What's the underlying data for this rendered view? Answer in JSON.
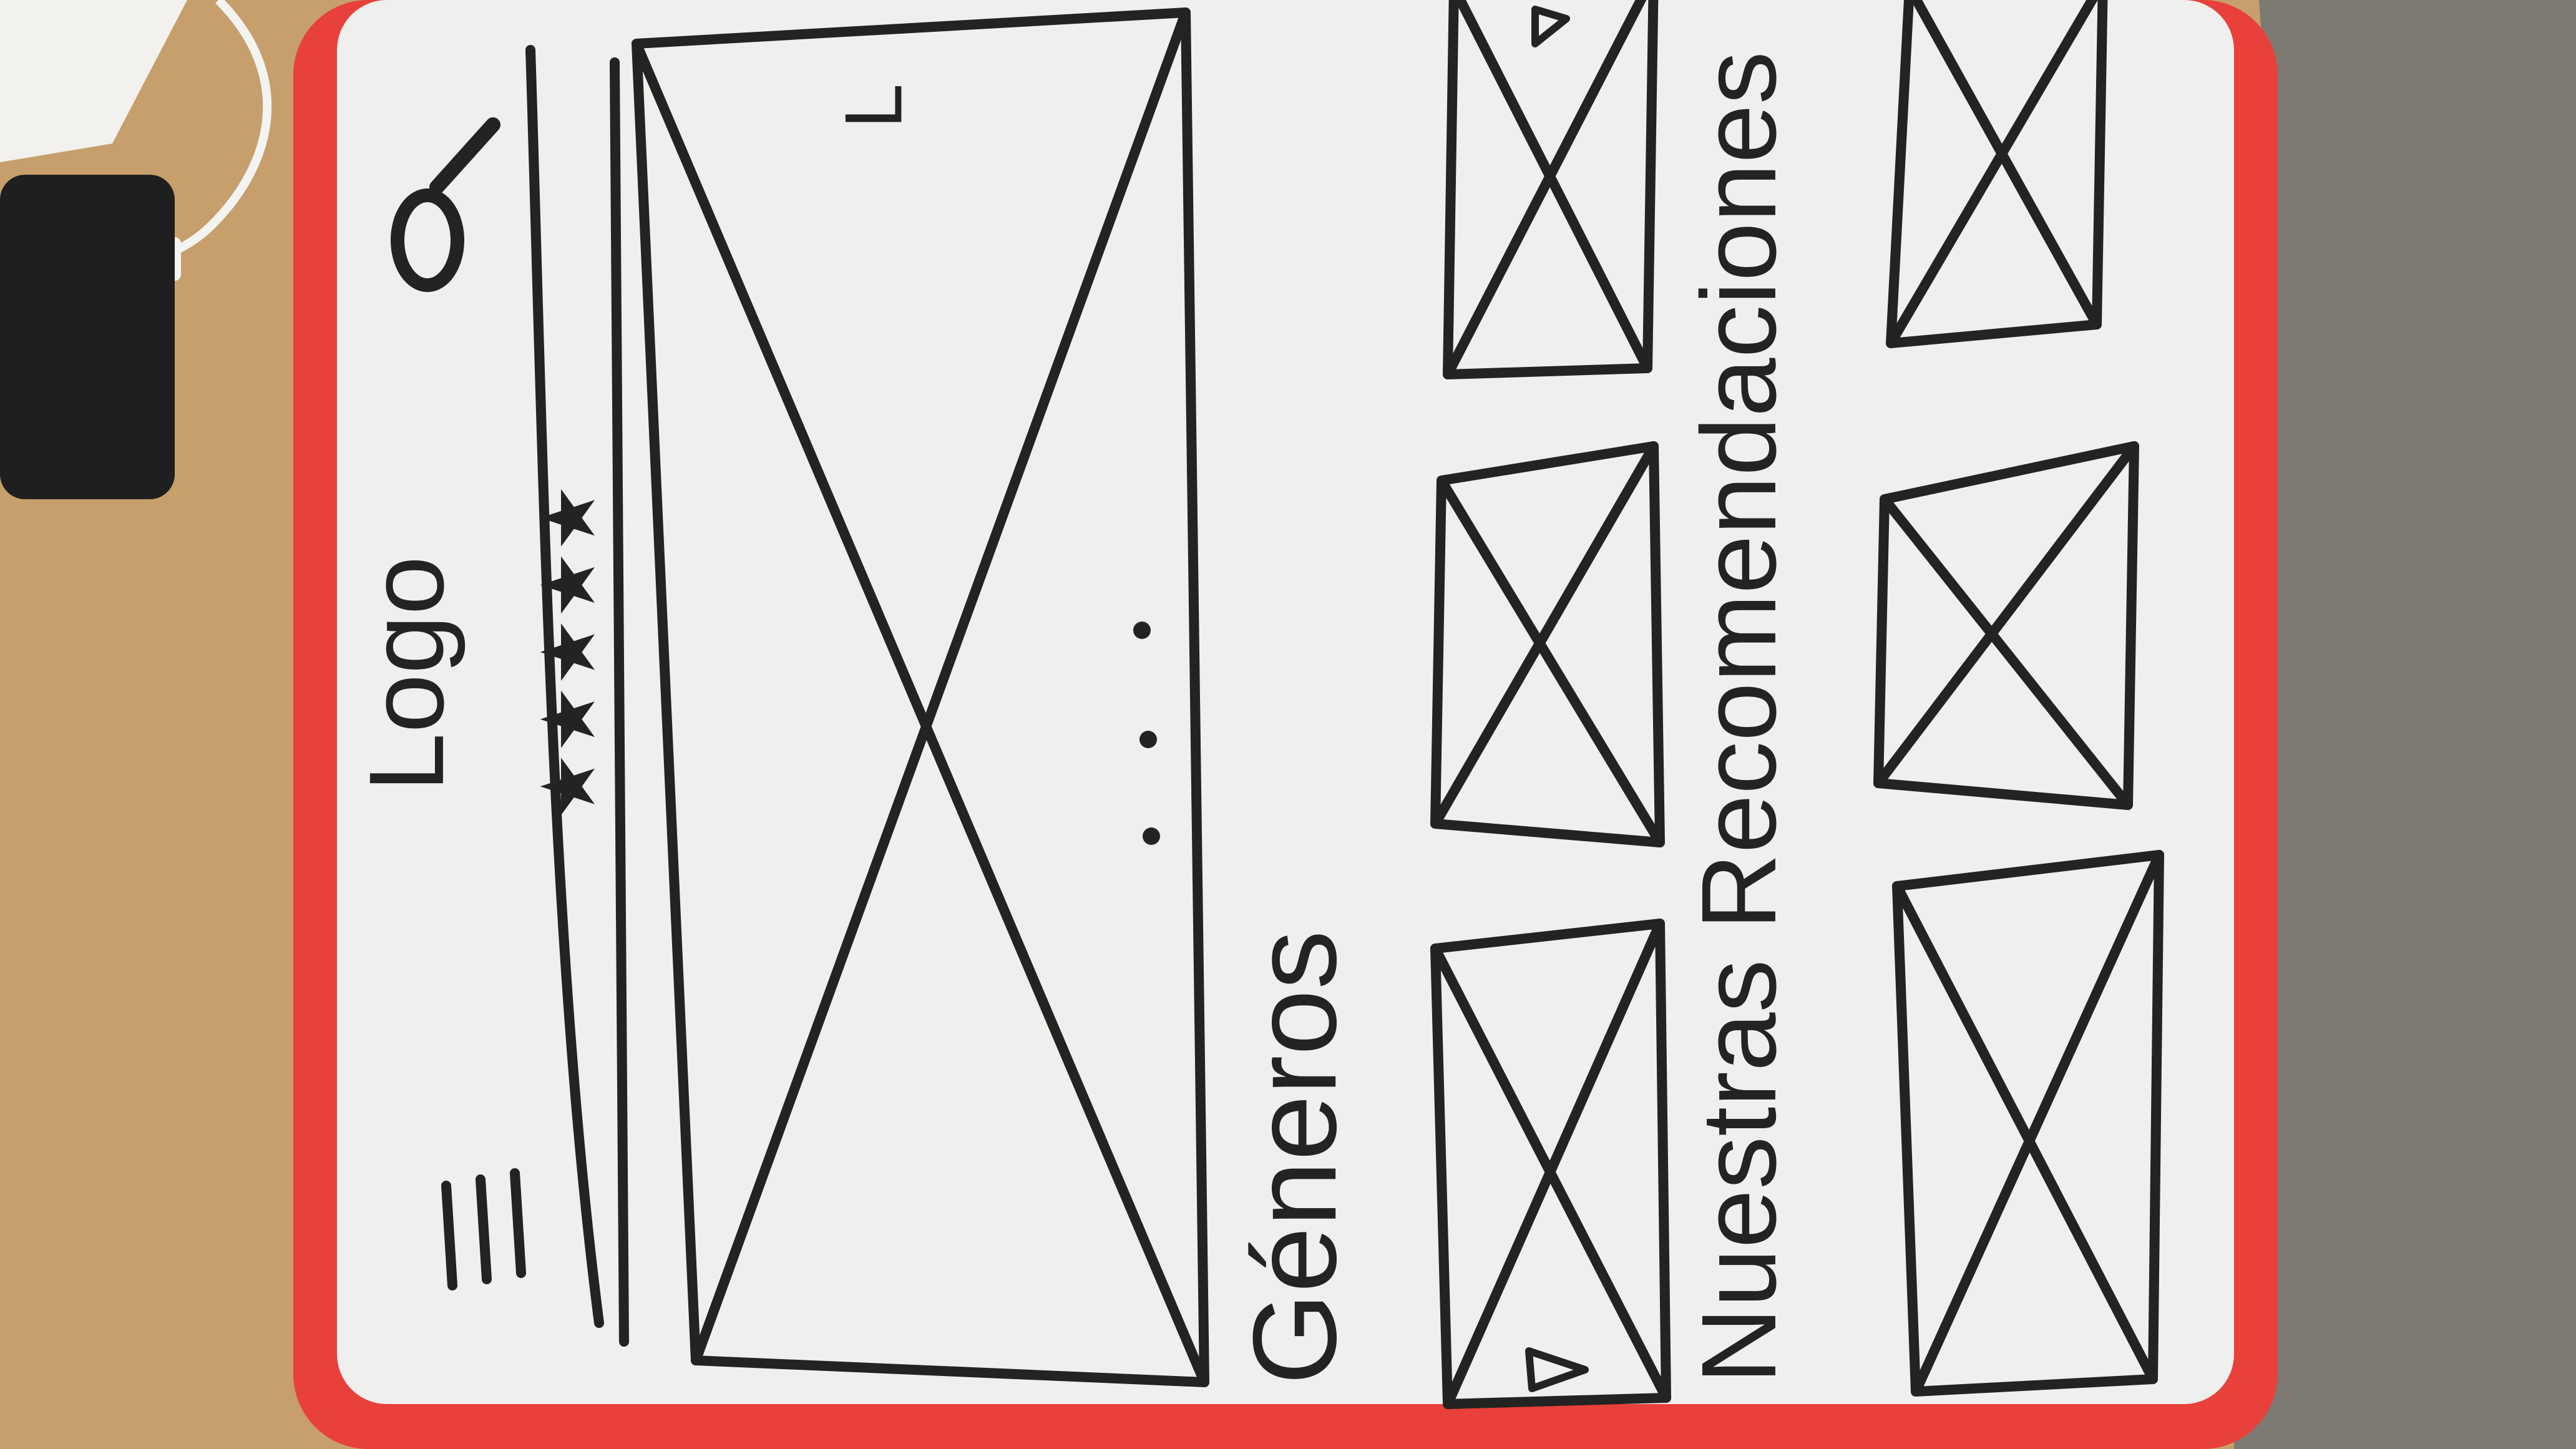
{
  "photo": {
    "desk_color": "#c79f6c",
    "frame_color": "#e8403a",
    "board_color": "#efefed",
    "marker_color": "#232321",
    "cloth_color": "#7c7a73"
  },
  "sketch": {
    "logo_text": "Logo",
    "rating_stars": "★★★★★",
    "hero_mark": "L",
    "genres_heading": "Géneros",
    "recommendations_heading": "Nuestras Recomendaciones"
  },
  "icons": {
    "menu": "hamburger-icon",
    "search": "search-icon",
    "carousel": "carousel-dots-icon",
    "play": "play-triangle-icon"
  }
}
